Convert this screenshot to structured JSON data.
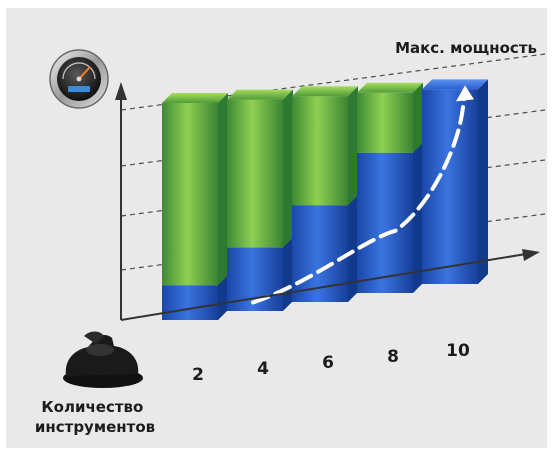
{
  "chart_data": {
    "type": "bar",
    "title": "Макс. мощность",
    "xlabel": "Количество инструментов",
    "ylabel": "",
    "categories": [
      "2",
      "4",
      "6",
      "8",
      "10"
    ],
    "ylim": [
      0,
      100
    ],
    "grid": true,
    "series": [
      {
        "values": [
          16,
          30,
          47,
          70,
          100
        ]
      },
      {
        "values": [
          84,
          70,
          53,
          30,
          0
        ]
      }
    ],
    "curve": {
      "description_points": [
        [
          4,
          5
        ],
        [
          6,
          11
        ],
        [
          8,
          31
        ],
        [
          10,
          100
        ]
      ]
    },
    "icons": [
      "power-gauge-icon",
      "sander-tool-icon"
    ],
    "colors": {
      "blue_base": "#2a5fcf",
      "blue_dark": "#123a8c",
      "green_top": "#7fc24a",
      "green_dark": "#2f7a32",
      "grid": "#555555",
      "axis": "#333333",
      "panel": "#e9e9e9"
    }
  }
}
